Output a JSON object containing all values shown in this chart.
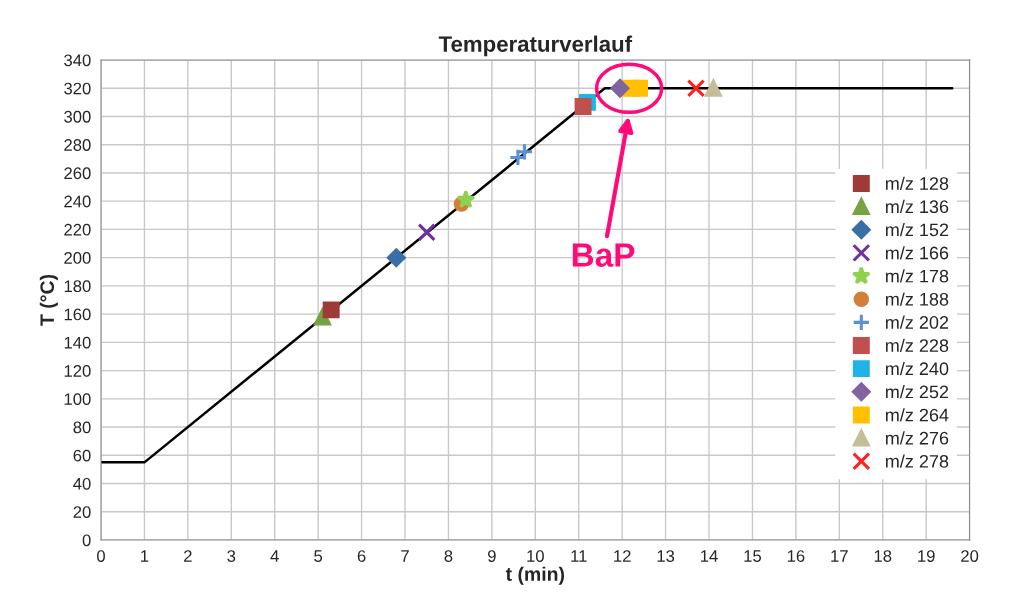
{
  "chart_data": {
    "type": "line",
    "title": "Temperaturverlauf",
    "xlabel": "t (min)",
    "ylabel": "T (°C)",
    "xlim": [
      0,
      20
    ],
    "xticks": [
      0,
      1,
      2,
      3,
      4,
      5,
      6,
      7,
      8,
      9,
      10,
      11,
      12,
      13,
      14,
      15,
      16,
      17,
      18,
      19,
      20
    ],
    "ylim": [
      0,
      340
    ],
    "yticks": [
      0,
      20,
      40,
      60,
      80,
      100,
      120,
      140,
      160,
      180,
      200,
      220,
      240,
      260,
      280,
      300,
      320,
      340
    ],
    "grid": true,
    "legend": "right",
    "annotations": [
      "BaP"
    ],
    "series": [
      {
        "type": "line",
        "color": "#000000",
        "x": [
          0,
          1,
          11.6,
          19.6
        ],
        "values": [
          55,
          55,
          320,
          320
        ],
        "marker": "none"
      },
      {
        "type": "scatter",
        "name": "m/z 128",
        "color": "#9e3b37",
        "marker": "square",
        "x": [
          5.3
        ],
        "values": [
          163
        ]
      },
      {
        "type": "scatter",
        "name": "m/z 136",
        "color": "#76a244",
        "marker": "triangle",
        "x": [
          5.1
        ],
        "values": [
          158
        ]
      },
      {
        "type": "scatter",
        "name": "m/z 152",
        "color": "#3a6ea8",
        "marker": "diamond",
        "x": [
          6.8
        ],
        "values": [
          200
        ]
      },
      {
        "type": "scatter",
        "name": "m/z 166",
        "color": "#7030a0",
        "marker": "cross",
        "x": [
          7.5
        ],
        "values": [
          218
        ]
      },
      {
        "type": "scatter",
        "name": "m/z 178",
        "color": "#8fd14f",
        "marker": "star",
        "x": [
          8.4
        ],
        "values": [
          241
        ]
      },
      {
        "type": "scatter",
        "name": "m/z 188",
        "color": "#d27f3a",
        "marker": "circle",
        "x": [
          8.3
        ],
        "values": [
          238
        ]
      },
      {
        "type": "scatter",
        "name": "m/z 202",
        "color": "#5b8fd6",
        "marker": "plus",
        "x": [
          9.6,
          9.75
        ],
        "values": [
          271,
          275
        ]
      },
      {
        "type": "scatter",
        "name": "m/z 228",
        "color": "#c0504d",
        "marker": "square",
        "x": [
          11.1
        ],
        "values": [
          307
        ]
      },
      {
        "type": "scatter",
        "name": "m/z 240",
        "color": "#1fb4e8",
        "marker": "square",
        "x": [
          11.2
        ],
        "values": [
          310
        ]
      },
      {
        "type": "scatter",
        "name": "m/z 252",
        "color": "#8064a2",
        "marker": "diamond",
        "x": [
          11.95
        ],
        "values": [
          320
        ]
      },
      {
        "type": "scatter",
        "name": "m/z 264",
        "color": "#ffc000",
        "marker": "square",
        "x": [
          12.2,
          12.4
        ],
        "values": [
          320,
          320
        ]
      },
      {
        "type": "scatter",
        "name": "m/z 276",
        "color": "#c4bd97",
        "marker": "triangle",
        "x": [
          14.1
        ],
        "values": [
          320
        ]
      },
      {
        "type": "scatter",
        "name": "m/z 278",
        "color": "#ff2020",
        "marker": "cross",
        "x": [
          13.7
        ],
        "values": [
          320
        ]
      }
    ]
  }
}
